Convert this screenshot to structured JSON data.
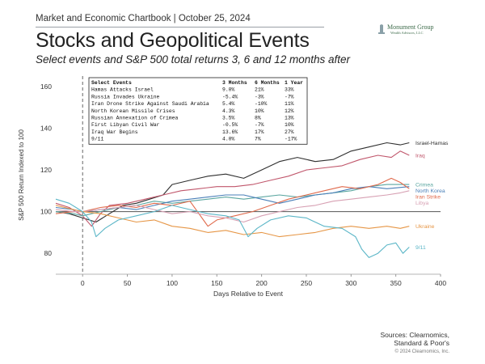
{
  "header": {
    "top_label": "Market and Economic Chartbook | October 25, 2024",
    "title": "Stocks and Geopolitical Events",
    "subtitle": "Select events and S&P 500 total returns 3, 6 and 12 months after"
  },
  "logo": {
    "name": "Monument Group",
    "sub": "Wealth Advisors, LLC"
  },
  "footer": {
    "sources_line1": "Sources: Clearnomics,",
    "sources_line2": "Standard & Poor's",
    "copyright": "© 2024 Clearnomics, Inc."
  },
  "chart_data": {
    "type": "line",
    "xlabel": "Days Relative to Event",
    "ylabel": "S&P 500 Return Indexed to 100",
    "xlim": [
      -30,
      400
    ],
    "ylim": [
      70,
      165
    ],
    "xticks": [
      0,
      50,
      100,
      150,
      200,
      250,
      300,
      350,
      400
    ],
    "yticks": [
      80,
      100,
      120,
      140,
      160
    ],
    "event_line_x": 0,
    "baseline_y": 100,
    "table": {
      "columns": [
        "Select Events",
        "3 Months",
        "6 Months",
        "1 Year"
      ],
      "rows": [
        [
          "Hamas Attacks Israel",
          "9.0%",
          "21%",
          "33%"
        ],
        [
          "Russia Invades Ukraine",
          "-5.4%",
          "-3%",
          "-7%"
        ],
        [
          "Iran Drone Strike Against Saudi Arabia",
          "5.4%",
          "-10%",
          "11%"
        ],
        [
          "North Korean Missile Crises",
          "4.3%",
          "10%",
          "12%"
        ],
        [
          "Russian Annexation of Crimea",
          "3.5%",
          "8%",
          "13%"
        ],
        [
          "First Libyan Civil War",
          "-0.5%",
          "-7%",
          "10%"
        ],
        [
          "Iraq War Begins",
          "13.6%",
          "17%",
          "27%"
        ],
        [
          "9/11",
          "4.0%",
          "7%",
          "-17%"
        ]
      ]
    },
    "series": [
      {
        "name": "Israel-Hamas",
        "color": "#2f2f2f",
        "points": [
          [
            -30,
            100
          ],
          [
            -15,
            99
          ],
          [
            0,
            97
          ],
          [
            15,
            95
          ],
          [
            30,
            99
          ],
          [
            45,
            103
          ],
          [
            60,
            104
          ],
          [
            75,
            106
          ],
          [
            90,
            108
          ],
          [
            100,
            113
          ],
          [
            120,
            115
          ],
          [
            140,
            117
          ],
          [
            160,
            118
          ],
          [
            180,
            116
          ],
          [
            200,
            120
          ],
          [
            220,
            124
          ],
          [
            240,
            126
          ],
          [
            260,
            124
          ],
          [
            280,
            125
          ],
          [
            300,
            129
          ],
          [
            320,
            131
          ],
          [
            340,
            133
          ],
          [
            355,
            132
          ],
          [
            365,
            133
          ]
        ]
      },
      {
        "name": "Iraq",
        "color": "#c0566b",
        "points": [
          [
            -30,
            104
          ],
          [
            -15,
            102
          ],
          [
            0,
            98
          ],
          [
            10,
            93
          ],
          [
            20,
            99
          ],
          [
            30,
            103
          ],
          [
            50,
            104
          ],
          [
            70,
            106
          ],
          [
            90,
            108
          ],
          [
            110,
            110
          ],
          [
            130,
            111
          ],
          [
            150,
            112
          ],
          [
            170,
            112
          ],
          [
            190,
            113
          ],
          [
            210,
            115
          ],
          [
            230,
            117
          ],
          [
            250,
            120
          ],
          [
            270,
            121
          ],
          [
            290,
            122
          ],
          [
            310,
            125
          ],
          [
            330,
            127
          ],
          [
            345,
            126
          ],
          [
            355,
            129
          ],
          [
            365,
            127
          ]
        ]
      },
      {
        "name": "Crimea",
        "color": "#5aa6a0",
        "points": [
          [
            -30,
            100
          ],
          [
            -10,
            99
          ],
          [
            0,
            98
          ],
          [
            20,
            100
          ],
          [
            40,
            102
          ],
          [
            60,
            103
          ],
          [
            80,
            105
          ],
          [
            100,
            104
          ],
          [
            120,
            105
          ],
          [
            140,
            106
          ],
          [
            160,
            107
          ],
          [
            180,
            106
          ],
          [
            200,
            107
          ],
          [
            220,
            108
          ],
          [
            240,
            107
          ],
          [
            260,
            108
          ],
          [
            280,
            109
          ],
          [
            300,
            110
          ],
          [
            320,
            112
          ],
          [
            340,
            113
          ],
          [
            365,
            113
          ]
        ]
      },
      {
        "name": "North Korea",
        "color": "#4a7fb8",
        "points": [
          [
            -30,
            102
          ],
          [
            -10,
            101
          ],
          [
            0,
            100
          ],
          [
            20,
            101
          ],
          [
            40,
            102
          ],
          [
            60,
            101
          ],
          [
            80,
            103
          ],
          [
            100,
            105
          ],
          [
            120,
            106
          ],
          [
            140,
            107
          ],
          [
            160,
            108
          ],
          [
            180,
            108
          ],
          [
            200,
            106
          ],
          [
            220,
            104
          ],
          [
            240,
            106
          ],
          [
            260,
            108
          ],
          [
            280,
            109
          ],
          [
            300,
            111
          ],
          [
            320,
            112
          ],
          [
            340,
            111
          ],
          [
            365,
            112
          ]
        ]
      },
      {
        "name": "Iran Strike",
        "color": "#e06a4c",
        "points": [
          [
            -30,
            99
          ],
          [
            -10,
            100
          ],
          [
            0,
            100
          ],
          [
            20,
            102
          ],
          [
            40,
            103
          ],
          [
            60,
            102
          ],
          [
            80,
            104
          ],
          [
            100,
            103
          ],
          [
            120,
            105
          ],
          [
            130,
            99
          ],
          [
            140,
            93
          ],
          [
            150,
            96
          ],
          [
            170,
            98
          ],
          [
            190,
            100
          ],
          [
            210,
            103
          ],
          [
            230,
            106
          ],
          [
            250,
            108
          ],
          [
            270,
            110
          ],
          [
            290,
            112
          ],
          [
            310,
            111
          ],
          [
            330,
            113
          ],
          [
            345,
            116
          ],
          [
            355,
            114
          ],
          [
            365,
            111
          ]
        ]
      },
      {
        "name": "Libya",
        "color": "#d7a0b3",
        "points": [
          [
            -30,
            101
          ],
          [
            -10,
            100
          ],
          [
            0,
            100
          ],
          [
            20,
            101
          ],
          [
            40,
            102
          ],
          [
            60,
            103
          ],
          [
            80,
            101
          ],
          [
            100,
            99
          ],
          [
            120,
            100
          ],
          [
            140,
            98
          ],
          [
            160,
            97
          ],
          [
            180,
            95
          ],
          [
            200,
            98
          ],
          [
            220,
            100
          ],
          [
            240,
            102
          ],
          [
            260,
            103
          ],
          [
            280,
            105
          ],
          [
            300,
            106
          ],
          [
            320,
            107
          ],
          [
            340,
            108
          ],
          [
            355,
            109
          ],
          [
            365,
            110
          ]
        ]
      },
      {
        "name": "Ukraine",
        "color": "#e69646",
        "points": [
          [
            -30,
            103
          ],
          [
            -10,
            101
          ],
          [
            0,
            100
          ],
          [
            20,
            99
          ],
          [
            40,
            97
          ],
          [
            60,
            95
          ],
          [
            80,
            96
          ],
          [
            100,
            93
          ],
          [
            120,
            92
          ],
          [
            140,
            90
          ],
          [
            160,
            91
          ],
          [
            180,
            89
          ],
          [
            200,
            90
          ],
          [
            220,
            88
          ],
          [
            240,
            89
          ],
          [
            260,
            90
          ],
          [
            280,
            92
          ],
          [
            300,
            93
          ],
          [
            320,
            92
          ],
          [
            340,
            93
          ],
          [
            355,
            92
          ],
          [
            365,
            93
          ]
        ]
      },
      {
        "name": "9/11",
        "color": "#5bb6c7",
        "points": [
          [
            -30,
            106
          ],
          [
            -15,
            104
          ],
          [
            0,
            100
          ],
          [
            10,
            95
          ],
          [
            15,
            88
          ],
          [
            25,
            92
          ],
          [
            40,
            96
          ],
          [
            60,
            98
          ],
          [
            80,
            100
          ],
          [
            100,
            103
          ],
          [
            120,
            101
          ],
          [
            140,
            99
          ],
          [
            160,
            98
          ],
          [
            175,
            96
          ],
          [
            185,
            88
          ],
          [
            195,
            92
          ],
          [
            210,
            96
          ],
          [
            230,
            98
          ],
          [
            250,
            97
          ],
          [
            270,
            93
          ],
          [
            290,
            92
          ],
          [
            305,
            88
          ],
          [
            312,
            82
          ],
          [
            320,
            78
          ],
          [
            330,
            80
          ],
          [
            340,
            84
          ],
          [
            350,
            85
          ],
          [
            358,
            80
          ],
          [
            365,
            83
          ]
        ]
      }
    ]
  }
}
